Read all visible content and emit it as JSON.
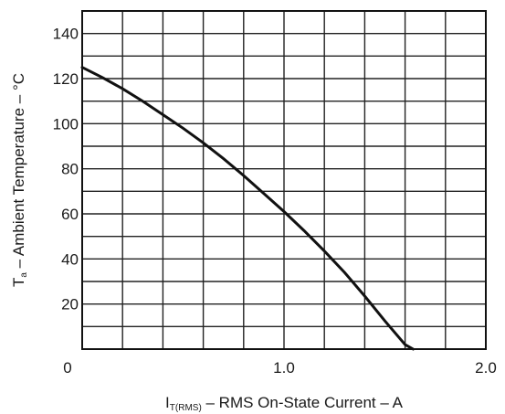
{
  "chart_data": {
    "type": "line",
    "title": "",
    "xlabel": {
      "main": "I",
      "sub": "T(RMS)",
      "rest": " – RMS On-State Current – A"
    },
    "ylabel": {
      "main": "T",
      "sub": "a",
      "rest": " – Ambient Temperature – °C"
    },
    "xlim": [
      0,
      2.0
    ],
    "ylim": [
      0,
      150
    ],
    "x_ticks": [
      0,
      1.0,
      2.0
    ],
    "x_tick_labels": [
      "0",
      "1.0",
      "2.0"
    ],
    "y_ticks": [
      20,
      40,
      60,
      80,
      100,
      120,
      140
    ],
    "y_tick_labels": [
      "20",
      "40",
      "60",
      "80",
      "100",
      "120",
      "140"
    ],
    "x_grid_step": 0.2,
    "y_grid_step": 10,
    "grid": true,
    "line_color": "#111111",
    "series": [
      {
        "x": [
          0,
          0.1,
          0.2,
          0.3,
          0.4,
          0.5,
          0.6,
          0.7,
          0.8,
          0.9,
          1.0,
          1.1,
          1.2,
          1.3,
          1.4,
          1.5,
          1.6,
          1.7
        ],
        "y": [
          125,
          120.5,
          115.5,
          110,
          104,
          98,
          91.5,
          84.5,
          77,
          69,
          61,
          52.5,
          43.5,
          34,
          23.5,
          12.5,
          2,
          -3
        ]
      }
    ]
  }
}
